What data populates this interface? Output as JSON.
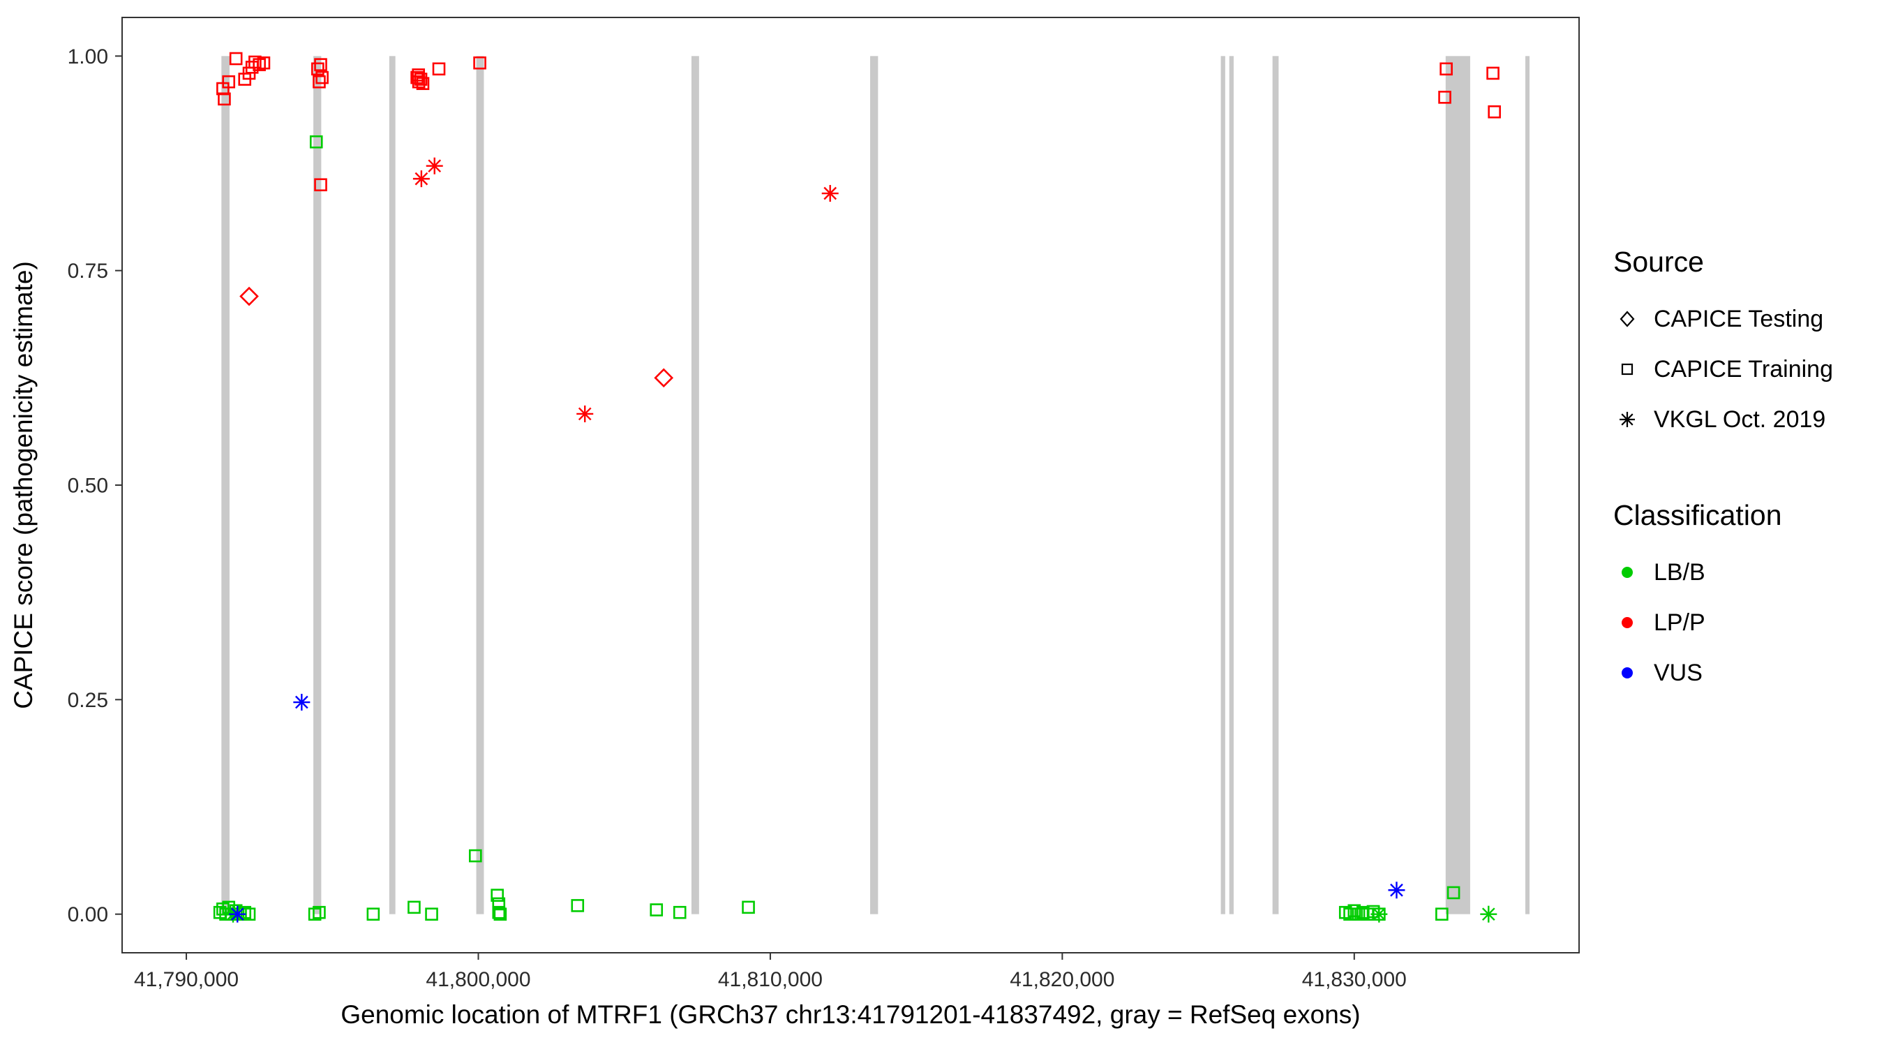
{
  "chart_data": {
    "type": "scatter",
    "title": "",
    "xlabel": "Genomic location of MTRF1 (GRCh37 chr13:41791201-41837492, gray = RefSeq exons)",
    "ylabel": "CAPICE score (pathogenicity estimate)",
    "xlim": [
      41787800,
      41837700
    ],
    "ylim": [
      -0.045,
      1.045
    ],
    "grid": false,
    "x_ticks": {
      "values": [
        41790000,
        41800000,
        41810000,
        41820000,
        41830000
      ],
      "labels": [
        "41,790,000",
        "41,800,000",
        "41,810,000",
        "41,820,000",
        "41,830,000"
      ]
    },
    "y_ticks": {
      "values": [
        0,
        0.25,
        0.5,
        0.75,
        1
      ],
      "labels": [
        "0.00",
        "0.25",
        "0.50",
        "0.75",
        "1.00"
      ]
    },
    "exon_color": "#c9c9c9",
    "exons": [
      [
        41791201,
        41791480
      ],
      [
        41794350,
        41794620
      ],
      [
        41796950,
        41797160
      ],
      [
        41799930,
        41800190
      ],
      [
        41807300,
        41807560
      ],
      [
        41813420,
        41813690
      ],
      [
        41825430,
        41825580
      ],
      [
        41825720,
        41825870
      ],
      [
        41827200,
        41827410
      ],
      [
        41833130,
        41833970
      ],
      [
        41835860,
        41836000
      ]
    ],
    "series": [
      {
        "name": "CAPICE Testing / LP-P",
        "source": "CAPICE Testing",
        "classification": "LP/P",
        "shape": "diamond",
        "color": "#FF0000",
        "points": [
          [
            41792150,
            0.72
          ],
          [
            41806350,
            0.625
          ]
        ]
      },
      {
        "name": "CAPICE Training / LP-P",
        "source": "CAPICE Training",
        "classification": "LP/P",
        "shape": "square",
        "color": "#FF0000",
        "points": [
          [
            41791250,
            0.962
          ],
          [
            41791300,
            0.95
          ],
          [
            41791450,
            0.97
          ],
          [
            41791700,
            0.997
          ],
          [
            41792000,
            0.973
          ],
          [
            41792150,
            0.98
          ],
          [
            41792250,
            0.987
          ],
          [
            41792350,
            0.993
          ],
          [
            41792500,
            0.99
          ],
          [
            41792650,
            0.992
          ],
          [
            41794500,
            0.985
          ],
          [
            41794600,
            0.99
          ],
          [
            41794650,
            0.975
          ],
          [
            41794550,
            0.97
          ],
          [
            41794600,
            0.85
          ],
          [
            41797900,
            0.975
          ],
          [
            41797960,
            0.97
          ],
          [
            41798030,
            0.973
          ],
          [
            41798100,
            0.968
          ],
          [
            41797950,
            0.978
          ],
          [
            41798650,
            0.985
          ],
          [
            41800050,
            0.992
          ],
          [
            41833100,
            0.952
          ],
          [
            41833150,
            0.985
          ],
          [
            41834750,
            0.98
          ],
          [
            41834800,
            0.935
          ]
        ]
      },
      {
        "name": "CAPICE Training / LB-B",
        "source": "CAPICE Training",
        "classification": "LB/B",
        "shape": "square",
        "color": "#00CC00",
        "points": [
          [
            41794450,
            0.9
          ],
          [
            41791150,
            0.002
          ],
          [
            41791250,
            0.006
          ],
          [
            41791350,
            0.0
          ],
          [
            41791450,
            0.008
          ],
          [
            41791550,
            0.0
          ],
          [
            41791700,
            0.004
          ],
          [
            41791850,
            0.0
          ],
          [
            41792000,
            0.002
          ],
          [
            41792150,
            0.0
          ],
          [
            41794400,
            0.0
          ],
          [
            41794550,
            0.002
          ],
          [
            41796400,
            0.0
          ],
          [
            41797800,
            0.008
          ],
          [
            41798400,
            0.0
          ],
          [
            41799900,
            0.068
          ],
          [
            41800650,
            0.022
          ],
          [
            41800700,
            0.012
          ],
          [
            41800700,
            0.002
          ],
          [
            41800750,
            0.0
          ],
          [
            41803400,
            0.01
          ],
          [
            41806100,
            0.005
          ],
          [
            41806900,
            0.002
          ],
          [
            41809250,
            0.008
          ],
          [
            41829700,
            0.002
          ],
          [
            41829850,
            0.0
          ],
          [
            41830000,
            0.004
          ],
          [
            41830150,
            0.0
          ],
          [
            41830300,
            0.002
          ],
          [
            41830450,
            0.0
          ],
          [
            41830650,
            0.003
          ],
          [
            41830850,
            0.0
          ],
          [
            41833000,
            0.0
          ],
          [
            41833400,
            0.025
          ]
        ]
      },
      {
        "name": "VKGL Oct. 2019 / LP-P",
        "source": "VKGL Oct. 2019",
        "classification": "LP/P",
        "shape": "asterisk",
        "color": "#FF0000",
        "points": [
          [
            41798050,
            0.857
          ],
          [
            41798500,
            0.872
          ],
          [
            41803650,
            0.583
          ],
          [
            41812050,
            0.84
          ]
        ]
      },
      {
        "name": "VKGL Oct. 2019 / LB-B",
        "source": "VKGL Oct. 2019",
        "classification": "LB/B",
        "shape": "asterisk",
        "color": "#00CC00",
        "points": [
          [
            41791600,
            0.0
          ],
          [
            41830850,
            0.0
          ],
          [
            41834600,
            0.0
          ]
        ]
      },
      {
        "name": "VKGL Oct. 2019 / VUS",
        "source": "VKGL Oct. 2019",
        "classification": "VUS",
        "shape": "asterisk",
        "color": "#0000FF",
        "points": [
          [
            41793950,
            0.247
          ],
          [
            41791750,
            0.0
          ],
          [
            41831450,
            0.028
          ]
        ]
      }
    ]
  },
  "legend": {
    "source": {
      "title": "Source",
      "items": [
        {
          "label": "CAPICE Testing",
          "shape": "diamond"
        },
        {
          "label": "CAPICE Training",
          "shape": "square"
        },
        {
          "label": "VKGL Oct. 2019",
          "shape": "asterisk"
        }
      ]
    },
    "classification": {
      "title": "Classification",
      "items": [
        {
          "label": "LB/B",
          "color": "#00CC00"
        },
        {
          "label": "LP/P",
          "color": "#FF0000"
        },
        {
          "label": "VUS",
          "color": "#0000FF"
        }
      ]
    }
  }
}
